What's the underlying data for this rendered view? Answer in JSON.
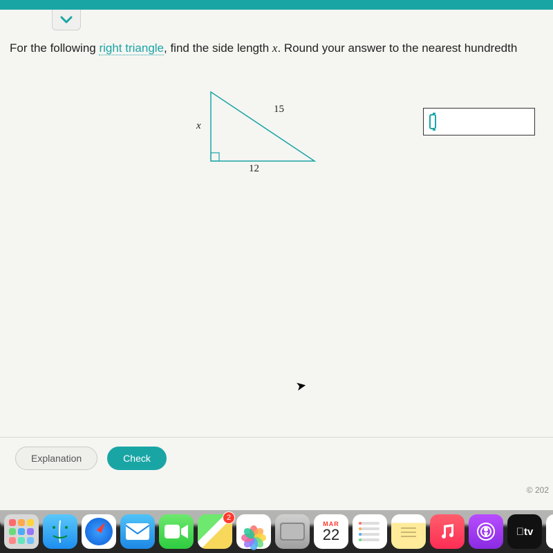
{
  "header": {
    "accent_color": "#1aa5a5"
  },
  "question": {
    "prefix": "For the following ",
    "hotlink": "right triangle",
    "middle": ", find the side length ",
    "variable": "x",
    "suffix": ". Round your answer to the nearest hundredth"
  },
  "triangle": {
    "type": "right-triangle-diagram",
    "stroke_color": "#1aa5a5",
    "stroke_width": 1.5,
    "vertices": {
      "A": [
        0,
        0
      ],
      "B": [
        0,
        100
      ],
      "C": [
        150,
        100
      ]
    },
    "right_angle_at": "B",
    "labels": {
      "leg_vertical": "x",
      "hypotenuse": "15",
      "leg_base": "12"
    },
    "label_fontsize": 15
  },
  "answer": {
    "value": "",
    "placeholder": ""
  },
  "actions": {
    "explanation_label": "Explanation",
    "check_label": "Check"
  },
  "footer": {
    "copyright": "© 202"
  },
  "dock": {
    "calendar": {
      "month": "MAR",
      "day": "22"
    },
    "maps_badge": "2",
    "tv_label": "tv",
    "launchpad_colors": [
      "#ff6b6b",
      "#ffa94d",
      "#ffd43b",
      "#69db7c",
      "#4dabf7",
      "#9775fa",
      "#ff8787",
      "#63e6be",
      "#74c0fc"
    ],
    "photos_petals": [
      "#ff6b6b",
      "#ffa94d",
      "#ffd43b",
      "#69db7c",
      "#4dabf7",
      "#9775fa",
      "#f06595",
      "#20c997"
    ],
    "reminder_colors": [
      "#ff6b6b",
      "#ffa94d",
      "#4dabf7",
      "#69db7c"
    ]
  }
}
